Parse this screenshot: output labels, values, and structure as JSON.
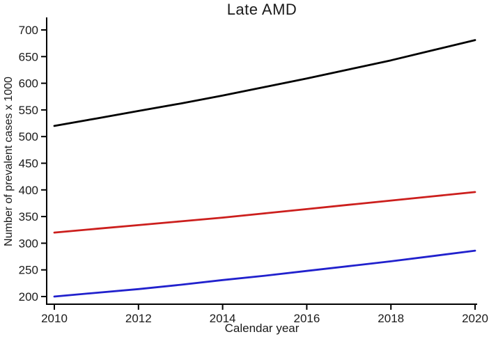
{
  "chart_data": {
    "type": "line",
    "title": "Late AMD",
    "xlabel": "Calendar year",
    "ylabel": "Number of prevalent cases x 1000",
    "x": [
      2010,
      2011,
      2012,
      2013,
      2014,
      2015,
      2016,
      2017,
      2018,
      2019,
      2020
    ],
    "series": [
      {
        "name": "black",
        "color": "#000000",
        "values": [
          520,
          534,
          548,
          562,
          577,
          593,
          609,
          626,
          643,
          662,
          681
        ]
      },
      {
        "name": "red",
        "color": "#cc1f1d",
        "values": [
          320,
          327,
          334,
          341,
          348,
          356,
          364,
          372,
          380,
          388,
          396
        ]
      },
      {
        "name": "blue",
        "color": "#2121cd",
        "values": [
          200,
          207,
          214,
          222,
          231,
          239,
          248,
          257,
          266,
          276,
          286
        ]
      }
    ],
    "xlim": [
      2010,
      2020
    ],
    "ylim": [
      200,
      700
    ],
    "x_ticks": [
      2010,
      2012,
      2014,
      2016,
      2018,
      2020
    ],
    "y_ticks": [
      200,
      250,
      300,
      350,
      400,
      450,
      500,
      550,
      600,
      650,
      700
    ],
    "grid": "off",
    "legend": "none",
    "axis_color": "#000000"
  }
}
